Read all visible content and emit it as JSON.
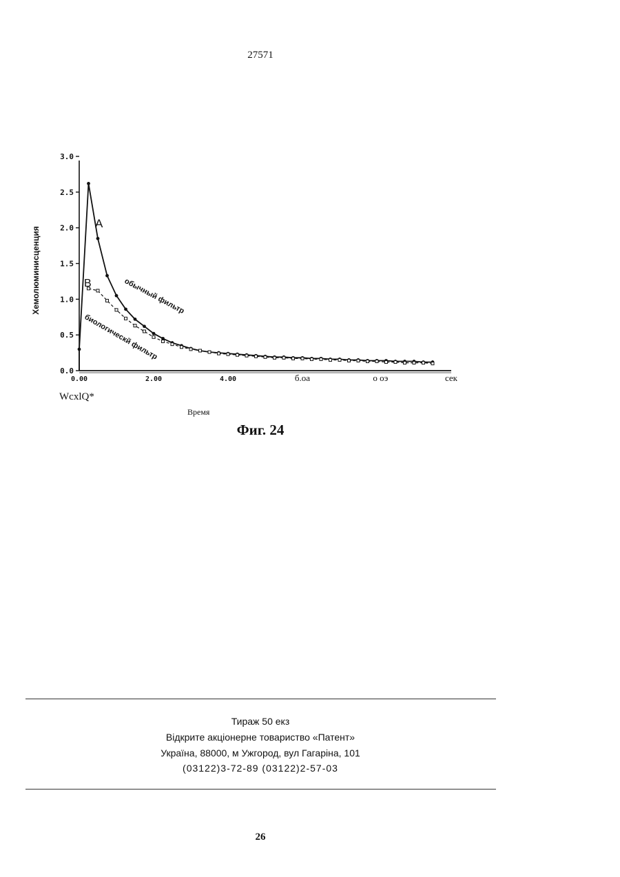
{
  "document_number": "27571",
  "figure": {
    "caption": "Фиг. 24",
    "below_axis_note": "WcxlQ*"
  },
  "chart_data": {
    "type": "line",
    "ylabel": "Хемолюминисценция",
    "xlabel": "Время",
    "ylim": [
      0,
      3.0
    ],
    "xlim": [
      0,
      10
    ],
    "y_ticks": [
      "3.0",
      "2.5",
      "2.0",
      "1.5",
      "1.0",
      "0.5",
      "0.0"
    ],
    "x_ticks": [
      "0.00",
      "2.00",
      "4.00",
      "б.оа",
      "о оэ",
      "сек"
    ],
    "annotations": [
      "A",
      "B",
      "обычный фильтр",
      "биологическй фильтр"
    ],
    "series": [
      {
        "name": "A",
        "color": "#111111",
        "style": "solid",
        "x": [
          0.0,
          0.25,
          0.5,
          0.75,
          1.0,
          1.25,
          1.5,
          1.75,
          2.0,
          2.25,
          2.5,
          2.75,
          3.0,
          3.25,
          3.5,
          3.75,
          4.0,
          4.25,
          4.5,
          4.75,
          5.0,
          5.25,
          5.5,
          5.75,
          6.0,
          6.25,
          6.5,
          6.75,
          7.0,
          7.25,
          7.5,
          7.75,
          8.0,
          8.25,
          8.5,
          8.75,
          9.0,
          9.25,
          9.5
        ],
        "y": [
          0.3,
          2.62,
          1.85,
          1.33,
          1.05,
          0.86,
          0.72,
          0.62,
          0.52,
          0.45,
          0.39,
          0.35,
          0.31,
          0.28,
          0.26,
          0.25,
          0.24,
          0.23,
          0.22,
          0.21,
          0.2,
          0.19,
          0.19,
          0.18,
          0.18,
          0.17,
          0.17,
          0.16,
          0.16,
          0.15,
          0.15,
          0.14,
          0.14,
          0.14,
          0.13,
          0.13,
          0.13,
          0.12,
          0.12
        ]
      },
      {
        "name": "B",
        "color": "#111111",
        "style": "dashed",
        "x": [
          0.25,
          0.5,
          0.75,
          1.0,
          1.25,
          1.5,
          1.75,
          2.0,
          2.25,
          2.5,
          2.75,
          3.0,
          3.25,
          3.5,
          3.75,
          4.0,
          4.25,
          4.5,
          4.75,
          5.0,
          5.25,
          5.5,
          5.75,
          6.0,
          6.25,
          6.5,
          6.75,
          7.0,
          7.25,
          7.5,
          7.75,
          8.0,
          8.25,
          8.5,
          8.75,
          9.0,
          9.25,
          9.5
        ],
        "y": [
          1.15,
          1.12,
          0.98,
          0.85,
          0.73,
          0.63,
          0.55,
          0.47,
          0.41,
          0.37,
          0.33,
          0.3,
          0.28,
          0.26,
          0.24,
          0.23,
          0.22,
          0.21,
          0.2,
          0.19,
          0.18,
          0.18,
          0.17,
          0.17,
          0.16,
          0.16,
          0.15,
          0.15,
          0.14,
          0.14,
          0.13,
          0.13,
          0.12,
          0.12,
          0.11,
          0.11,
          0.11,
          0.1
        ]
      }
    ]
  },
  "imprint": {
    "line1": "Тираж 50 екз",
    "line2": "Відкрите акціонерне товариство «Патент»",
    "line3": "Україна, 88000, м Ужгород, вул Гагаріна, 101",
    "line4": "(03122)3-72-89  (03122)2-57-03"
  },
  "page_number": "26"
}
